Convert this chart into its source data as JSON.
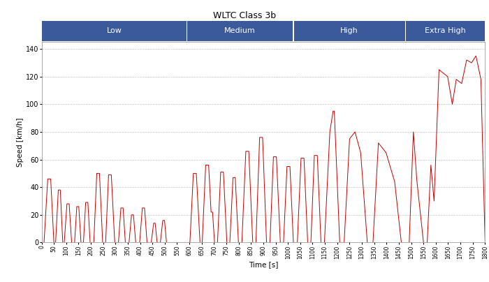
{
  "title": "WLTC Class 3b",
  "xlabel": "Time [s]",
  "ylabel": "Speed [km/h]",
  "xlim": [
    0,
    1800
  ],
  "ylim": [
    0,
    145
  ],
  "yticks": [
    0,
    20,
    40,
    60,
    80,
    100,
    120,
    140
  ],
  "xticks": [
    0,
    50,
    100,
    150,
    200,
    250,
    300,
    350,
    400,
    450,
    500,
    550,
    600,
    650,
    700,
    750,
    800,
    850,
    900,
    950,
    1000,
    1050,
    1100,
    1150,
    1200,
    1250,
    1300,
    1350,
    1400,
    1450,
    1500,
    1550,
    1600,
    1650,
    1700,
    1750,
    1800
  ],
  "line_color": "#c00000",
  "background_color": "#ffffff",
  "grid_color": "#aaaaaa",
  "phases": [
    {
      "name": "Low",
      "start": 0,
      "end": 589
    },
    {
      "name": "Medium",
      "start": 589,
      "end": 1022
    },
    {
      "name": "High",
      "start": 1022,
      "end": 1477
    },
    {
      "name": "Extra High",
      "start": 1477,
      "end": 1800
    }
  ],
  "phase_bar_color": "#3a5a9c",
  "phase_bar_text_color": "#ffffff"
}
